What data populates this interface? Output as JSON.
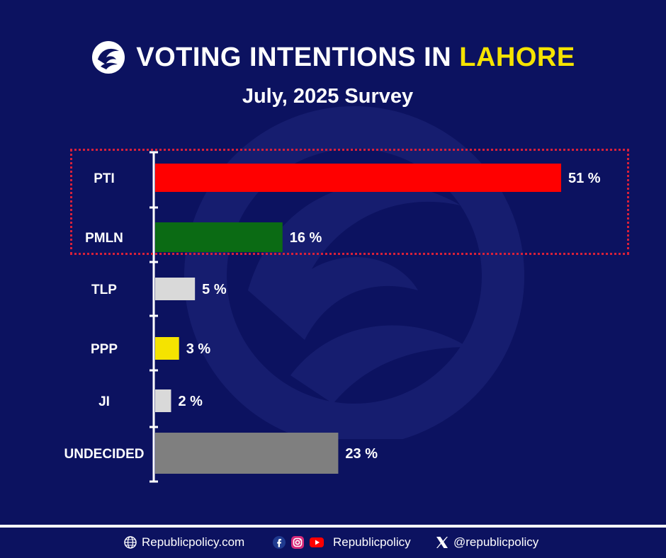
{
  "header": {
    "title_main": "VOTING INTENTIONS IN",
    "title_highlight": "LAHORE",
    "subtitle": "July, 2025 Survey",
    "highlight_color": "#f5e300"
  },
  "chart_data": {
    "type": "bar",
    "orientation": "horizontal",
    "title": "VOTING INTENTIONS IN LAHORE",
    "subtitle": "July, 2025 Survey",
    "categories": [
      "PTI",
      "PMLN",
      "TLP",
      "PPP",
      "JI",
      "UNDECIDED"
    ],
    "values": [
      51,
      16,
      5,
      3,
      2,
      23
    ],
    "value_labels": [
      "51 %",
      "16 %",
      "5 %",
      "3 %",
      "2 %",
      "23 %"
    ],
    "colors": [
      "#ff0000",
      "#0b6b14",
      "#d9d9d9",
      "#f5e300",
      "#d9d9d9",
      "#7f7f7f"
    ],
    "xlim": [
      0,
      51
    ],
    "grid": false,
    "highlighted_categories": [
      "PTI",
      "PMLN"
    ]
  },
  "footer": {
    "website": "Republicpolicy.com",
    "social": "Republicpolicy",
    "x_handle": "@republicpolicy"
  },
  "colors": {
    "background": "#0c1260",
    "highlight_box": "#d8203a"
  }
}
